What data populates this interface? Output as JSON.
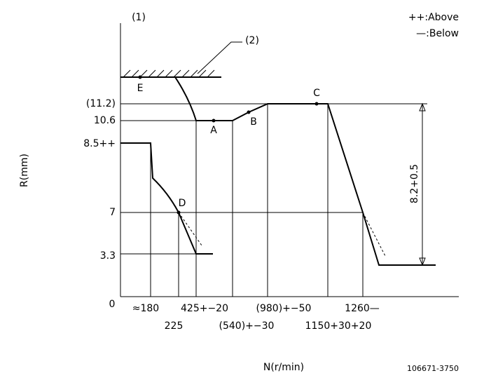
{
  "diagram": {
    "figure_number": "(1)",
    "callout": "(2)",
    "legend": {
      "above": "++:Above",
      "below": "—:Below"
    },
    "y_axis_title": "R(mm)",
    "x_axis_title": "N(r/min)",
    "part_number": "106671-3750",
    "y_labels": [
      "(11.2)",
      "10.6",
      "8.5++",
      "7",
      "3.3",
      "0"
    ],
    "x_labels_top": [
      "≈180",
      "425+−20",
      "(980)+−50",
      "1260—"
    ],
    "x_labels_bottom": [
      "225",
      "(540)+−30",
      "1150+30+20"
    ],
    "points": [
      "A",
      "B",
      "C",
      "D",
      "E"
    ],
    "dimension": "8.2+0.5"
  }
}
